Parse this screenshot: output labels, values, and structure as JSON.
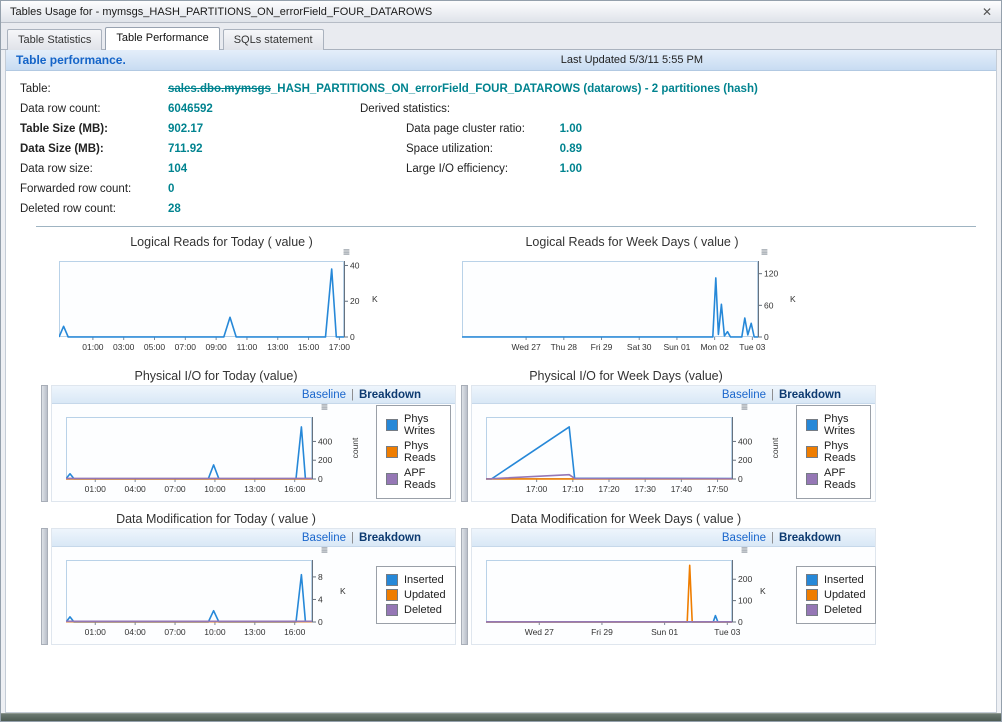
{
  "window": {
    "title": "Tables Usage for - mymsgs_HASH_PARTITIONS_ON_errorField_FOUR_DATAROWS"
  },
  "ui": {
    "close_icon": "✕",
    "menu_icon": "≡"
  },
  "tabs": [
    {
      "label": "Table Statistics"
    },
    {
      "label": "Table Performance"
    },
    {
      "label": "SQLs statement"
    }
  ],
  "header": {
    "title": "Table performance.",
    "last_updated": "Last Updated 5/3/11 5:55 PM"
  },
  "info": {
    "table_label": "Table:",
    "table_name_prefix": "sales.dbo.mymsgs",
    "table_name_rest": "_HASH_PARTITIONS_ON_errorField_FOUR_DATAROWS (datarows) - 2 partitiones (hash)",
    "left_rows": [
      {
        "label": "Data row count:",
        "value": "6046592"
      },
      {
        "label": "Table Size (MB):",
        "value": "902.17"
      },
      {
        "label": "Data Size (MB):",
        "value": "711.92"
      },
      {
        "label": "Data row size:",
        "value": "104"
      },
      {
        "label": "Forwarded row count:",
        "value": "0"
      },
      {
        "label": "Deleted row count:",
        "value": "28"
      }
    ],
    "derived_title": "Derived statistics:",
    "derived_rows": [
      {
        "label": "Data page cluster ratio:",
        "value": "1.00"
      },
      {
        "label": "Space utilization:",
        "value": "0.89"
      },
      {
        "label": "Large I/O efficiency:",
        "value": "1.00"
      }
    ]
  },
  "links": {
    "baseline": "Baseline",
    "separator": "|",
    "breakdown": "Breakdown"
  },
  "chart_data": [
    {
      "type": "line",
      "title": "Logical Reads for Today ( value )",
      "xlabel": "",
      "ylabel": "K",
      "xlim": [
        -1.2,
        17.3
      ],
      "ylim": [
        0,
        42.5
      ],
      "yunit": "K",
      "yticks": [
        0,
        20,
        40
      ],
      "xticks": [
        {
          "x": 1,
          "label": "01:00"
        },
        {
          "x": 3,
          "label": "03:00"
        },
        {
          "x": 5,
          "label": "05:00"
        },
        {
          "x": 7,
          "label": "07:00"
        },
        {
          "x": 9,
          "label": "09:00"
        },
        {
          "x": 11,
          "label": "11:00"
        },
        {
          "x": 13,
          "label": "13:00"
        },
        {
          "x": 15,
          "label": "15:00"
        },
        {
          "x": 17,
          "label": "17:00"
        }
      ],
      "series": [
        {
          "name": "Logical Reads",
          "color": "#2688d8",
          "points": [
            [
              -1.2,
              0
            ],
            [
              -0.9,
              6
            ],
            [
              -0.6,
              0
            ],
            [
              9.5,
              0
            ],
            [
              9.9,
              11
            ],
            [
              10.3,
              0
            ],
            [
              16.1,
              0
            ],
            [
              16.5,
              38
            ],
            [
              16.8,
              0
            ],
            [
              17.3,
              0
            ]
          ]
        }
      ]
    },
    {
      "type": "line",
      "title": "Logical Reads for Week Days ( value )",
      "xlabel": "",
      "ylabel": "K",
      "xlim": [
        -1.7,
        6.15
      ],
      "ylim": [
        0,
        144
      ],
      "yunit": "K",
      "yticks": [
        0,
        60,
        120
      ],
      "xticks": [
        {
          "x": 0,
          "label": "Wed 27"
        },
        {
          "x": 1,
          "label": "Thu 28"
        },
        {
          "x": 2,
          "label": "Fri 29"
        },
        {
          "x": 3,
          "label": "Sat 30"
        },
        {
          "x": 4,
          "label": "Sun 01"
        },
        {
          "x": 5,
          "label": "Mon 02"
        },
        {
          "x": 6,
          "label": "Tue 03"
        }
      ],
      "series": [
        {
          "name": "Logical Reads",
          "color": "#2688d8",
          "points": [
            [
              -1.7,
              0
            ],
            [
              4.95,
              0
            ],
            [
              5.03,
              112
            ],
            [
              5.1,
              5
            ],
            [
              5.18,
              62
            ],
            [
              5.26,
              2
            ],
            [
              5.34,
              10
            ],
            [
              5.42,
              0
            ],
            [
              5.72,
              0
            ],
            [
              5.8,
              36
            ],
            [
              5.88,
              4
            ],
            [
              5.97,
              26
            ],
            [
              6.05,
              0
            ],
            [
              6.15,
              0
            ]
          ]
        }
      ]
    },
    {
      "type": "line",
      "title": "Physical I/O for Today (value)",
      "xlabel": "",
      "ylabel": "count",
      "xlim": [
        -1.2,
        17.3
      ],
      "ylim": [
        0,
        660
      ],
      "yunit": "count",
      "yticks": [
        0,
        200,
        400
      ],
      "xticks": [
        {
          "x": 1,
          "label": "01:00"
        },
        {
          "x": 4,
          "label": "04:00"
        },
        {
          "x": 7,
          "label": "07:00"
        },
        {
          "x": 10,
          "label": "10:00"
        },
        {
          "x": 13,
          "label": "13:00"
        },
        {
          "x": 16,
          "label": "16:00"
        }
      ],
      "series": [
        {
          "name": "Phys Writes",
          "color": "#2688d8",
          "points": [
            [
              -1.2,
              2
            ],
            [
              -0.9,
              55
            ],
            [
              -0.6,
              2
            ],
            [
              9.5,
              2
            ],
            [
              9.9,
              150
            ],
            [
              10.3,
              2
            ],
            [
              16.1,
              2
            ],
            [
              16.5,
              555
            ],
            [
              16.8,
              3
            ],
            [
              17.3,
              3
            ]
          ]
        },
        {
          "name": "Phys Reads",
          "color": "#ef7d00",
          "points": [
            [
              -1.2,
              1
            ],
            [
              17.3,
              1
            ]
          ]
        },
        {
          "name": "APF Reads",
          "color": "#9577b5",
          "points": [
            [
              -1.2,
              6
            ],
            [
              17.3,
              6
            ]
          ]
        }
      ]
    },
    {
      "type": "line",
      "title": "Physical I/O for Week Days (value)",
      "xlabel": "",
      "ylabel": "count",
      "xlim": [
        0,
        68
      ],
      "ylim": [
        0,
        660
      ],
      "yunit": "count",
      "yticks": [
        0,
        200,
        400
      ],
      "xticks": [
        {
          "x": 14,
          "label": "17:00"
        },
        {
          "x": 24,
          "label": "17:10"
        },
        {
          "x": 34,
          "label": "17:20"
        },
        {
          "x": 44,
          "label": "17:30"
        },
        {
          "x": 54,
          "label": "17:40"
        },
        {
          "x": 64,
          "label": "17:50"
        }
      ],
      "series": [
        {
          "name": "Phys Writes",
          "color": "#2688d8",
          "points": [
            [
              0,
              2
            ],
            [
              1.5,
              0
            ],
            [
              23,
              555
            ],
            [
              24.5,
              8
            ],
            [
              68,
              4
            ]
          ]
        },
        {
          "name": "Phys Reads",
          "color": "#ef7d00",
          "points": [
            [
              0,
              1
            ],
            [
              68,
              1
            ]
          ]
        },
        {
          "name": "APF Reads",
          "color": "#9577b5",
          "points": [
            [
              0,
              0
            ],
            [
              23,
              46
            ],
            [
              24.5,
              6
            ],
            [
              68,
              3
            ]
          ]
        }
      ]
    },
    {
      "type": "line",
      "title": "Data Modification for Today ( value )",
      "xlabel": "",
      "ylabel": "K",
      "xlim": [
        -1.2,
        17.3
      ],
      "ylim": [
        0,
        11
      ],
      "yunit": "K",
      "yticks": [
        0,
        4,
        8
      ],
      "xticks": [
        {
          "x": 1,
          "label": "01:00"
        },
        {
          "x": 4,
          "label": "04:00"
        },
        {
          "x": 7,
          "label": "07:00"
        },
        {
          "x": 10,
          "label": "10:00"
        },
        {
          "x": 13,
          "label": "13:00"
        },
        {
          "x": 16,
          "label": "16:00"
        }
      ],
      "series": [
        {
          "name": "Inserted",
          "color": "#2688d8",
          "points": [
            [
              -1.2,
              0
            ],
            [
              -0.9,
              0.9
            ],
            [
              -0.6,
              0
            ],
            [
              9.5,
              0
            ],
            [
              9.9,
              2
            ],
            [
              10.3,
              0
            ],
            [
              16.1,
              0
            ],
            [
              16.5,
              8.4
            ],
            [
              16.8,
              0.1
            ],
            [
              17.3,
              0.1
            ]
          ]
        },
        {
          "name": "Updated",
          "color": "#ef7d00",
          "points": [
            [
              -1.2,
              0.05
            ],
            [
              17.3,
              0.05
            ]
          ]
        },
        {
          "name": "Deleted",
          "color": "#9577b5",
          "points": [
            [
              -1.2,
              0.12
            ],
            [
              17.3,
              0.12
            ]
          ]
        }
      ]
    },
    {
      "type": "line",
      "title": "Data Modification for Week Days ( value )",
      "xlabel": "",
      "ylabel": "K",
      "xlim": [
        -1.7,
        6.15
      ],
      "ylim": [
        0,
        290
      ],
      "yunit": "K",
      "yticks": [
        0,
        100,
        200
      ],
      "xticks": [
        {
          "x": 0,
          "label": "Wed 27"
        },
        {
          "x": 2,
          "label": "Fri 29"
        },
        {
          "x": 4,
          "label": "Sun 01"
        },
        {
          "x": 6,
          "label": "Tue 03"
        }
      ],
      "series": [
        {
          "name": "Inserted",
          "color": "#2688d8",
          "points": [
            [
              -1.7,
              0
            ],
            [
              5.55,
              0
            ],
            [
              5.62,
              30
            ],
            [
              5.7,
              0
            ],
            [
              6.15,
              0
            ]
          ]
        },
        {
          "name": "Updated",
          "color": "#ef7d00",
          "points": [
            [
              -1.7,
              0
            ],
            [
              4.72,
              0
            ],
            [
              4.8,
              265
            ],
            [
              4.88,
              0
            ],
            [
              6.15,
              0
            ]
          ]
        },
        {
          "name": "Deleted",
          "color": "#9577b5",
          "points": [
            [
              -1.7,
              1
            ],
            [
              6.15,
              1
            ]
          ]
        }
      ]
    }
  ]
}
